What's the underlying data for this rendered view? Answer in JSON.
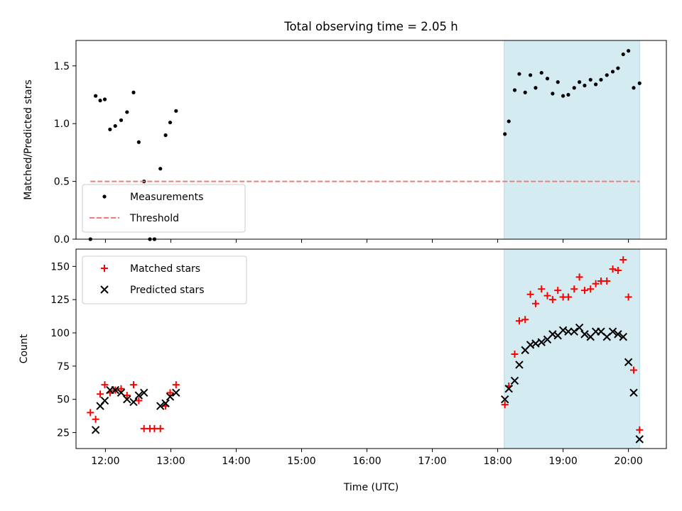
{
  "chart_data": [
    {
      "type": "scatter",
      "title": "Total observing time = 2.05 h",
      "xlabel": "",
      "ylabel": "Matched/Predicted stars",
      "xlim": [
        11.55,
        20.58
      ],
      "ylim": [
        0,
        1.72
      ],
      "yticks": [
        0.0,
        0.5,
        1.0,
        1.5
      ],
      "ytick_labels": [
        "0.0",
        "0.5",
        "1.0",
        "1.5"
      ],
      "xticks": [
        12,
        13,
        14,
        15,
        16,
        17,
        18,
        19,
        20
      ],
      "shaded_span": {
        "x0": 18.1,
        "x1": 20.17,
        "color": "#d4ebf2"
      },
      "legend": {
        "placement": "lower-left",
        "entries": [
          "Measurements",
          "Threshold"
        ]
      },
      "series": [
        {
          "name": "Measurements",
          "marker": "dot",
          "color": "#000000",
          "x": [
            11.77,
            11.85,
            11.92,
            11.99,
            12.07,
            12.15,
            12.24,
            12.33,
            12.43,
            12.51,
            12.59,
            12.68,
            12.75,
            12.84,
            12.92,
            12.99,
            13.08,
            18.11,
            18.17,
            18.26,
            18.33,
            18.42,
            18.5,
            18.58,
            18.67,
            18.76,
            18.84,
            18.92,
            19.0,
            19.08,
            19.17,
            19.25,
            19.33,
            19.42,
            19.5,
            19.58,
            19.67,
            19.76,
            19.84,
            19.92,
            20.0,
            20.08,
            20.17
          ],
          "y": [
            0.0,
            1.24,
            1.2,
            1.21,
            0.95,
            0.98,
            1.03,
            1.1,
            1.27,
            0.84,
            0.5,
            0.0,
            0.0,
            0.61,
            0.9,
            1.01,
            1.11,
            0.91,
            1.02,
            1.29,
            1.43,
            1.27,
            1.42,
            1.31,
            1.44,
            1.39,
            1.26,
            1.36,
            1.24,
            1.25,
            1.31,
            1.36,
            1.33,
            1.38,
            1.34,
            1.38,
            1.42,
            1.45,
            1.48,
            1.6,
            1.63,
            1.31,
            1.35
          ]
        },
        {
          "name": "Threshold",
          "marker": "dashed-line",
          "color": "#f47b7b",
          "x": [
            11.77,
            20.17
          ],
          "y": [
            0.5,
            0.5
          ]
        }
      ]
    },
    {
      "type": "scatter",
      "title": "",
      "xlabel": "Time (UTC)",
      "ylabel": "Count",
      "xlim": [
        11.55,
        20.58
      ],
      "ylim": [
        13,
        163
      ],
      "yticks": [
        25,
        50,
        75,
        100,
        125,
        150
      ],
      "ytick_labels": [
        "25",
        "50",
        "75",
        "100",
        "125",
        "150"
      ],
      "xticks": [
        12,
        13,
        14,
        15,
        16,
        17,
        18,
        19,
        20
      ],
      "xtick_labels": [
        "12:00",
        "13:00",
        "14:00",
        "15:00",
        "16:00",
        "17:00",
        "18:00",
        "19:00",
        "20:00"
      ],
      "shaded_span": {
        "x0": 18.1,
        "x1": 20.17,
        "color": "#d4ebf2"
      },
      "legend": {
        "placement": "top-left",
        "entries": [
          "Matched stars",
          "Predicted stars"
        ]
      },
      "series": [
        {
          "name": "Matched stars",
          "marker": "plus",
          "color": "#ff0000",
          "x": [
            11.77,
            11.85,
            11.92,
            11.99,
            12.07,
            12.15,
            12.24,
            12.33,
            12.43,
            12.51,
            12.59,
            12.68,
            12.75,
            12.84,
            12.92,
            12.99,
            13.08,
            18.11,
            18.17,
            18.26,
            18.33,
            18.42,
            18.5,
            18.58,
            18.67,
            18.76,
            18.84,
            18.92,
            19.0,
            19.08,
            19.17,
            19.25,
            19.33,
            19.42,
            19.5,
            19.58,
            19.67,
            19.76,
            19.84,
            19.92,
            20.0,
            20.08,
            20.17
          ],
          "y": [
            40,
            35,
            54,
            61,
            55,
            57,
            58,
            53,
            61,
            49,
            28,
            28,
            28,
            28,
            45,
            55,
            61,
            46,
            60,
            84,
            109,
            110,
            129,
            122,
            133,
            128,
            125,
            132,
            127,
            127,
            133,
            142,
            132,
            133,
            137,
            139,
            139,
            148,
            147,
            155,
            127,
            72,
            27
          ]
        },
        {
          "name": "Predicted stars",
          "marker": "cross",
          "color": "#000000",
          "x": [
            11.85,
            11.92,
            11.99,
            12.07,
            12.15,
            12.24,
            12.33,
            12.43,
            12.51,
            12.59,
            12.84,
            12.92,
            12.99,
            13.08,
            18.11,
            18.17,
            18.26,
            18.33,
            18.42,
            18.5,
            18.58,
            18.67,
            18.76,
            18.84,
            18.92,
            19.0,
            19.08,
            19.17,
            19.25,
            19.33,
            19.42,
            19.5,
            19.58,
            19.67,
            19.76,
            19.84,
            19.92,
            20.0,
            20.08,
            20.17
          ],
          "y": [
            27,
            45,
            49,
            57,
            57,
            55,
            50,
            48,
            53,
            55,
            45,
            47,
            52,
            55,
            50,
            58,
            64,
            76,
            87,
            91,
            92,
            93,
            95,
            99,
            98,
            102,
            101,
            101,
            104,
            99,
            97,
            101,
            101,
            97,
            101,
            99,
            97,
            78,
            55,
            20
          ]
        }
      ]
    }
  ]
}
